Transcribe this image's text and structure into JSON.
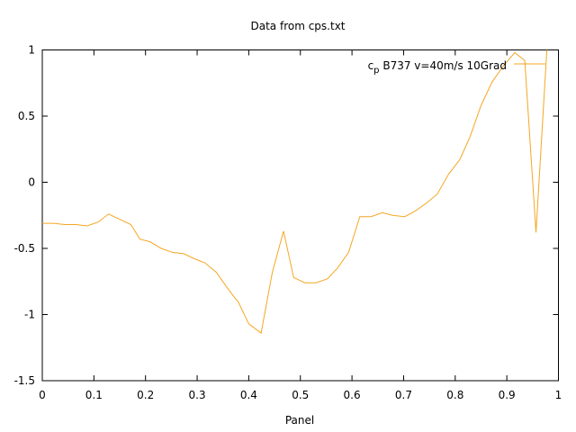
{
  "chart_data": {
    "type": "line",
    "title": "Data from cps.txt",
    "xlabel": "Panel",
    "ylabel": "",
    "xlim": [
      0,
      1
    ],
    "ylim": [
      -1.5,
      1
    ],
    "xticks": [
      0,
      0.1,
      0.2,
      0.3,
      0.4,
      0.5,
      0.6,
      0.7,
      0.8,
      0.9,
      1
    ],
    "xtick_labels": [
      "0",
      "0.1",
      "0.2",
      "0.3",
      "0.4",
      "0.5",
      "0.6",
      "0.7",
      "0.8",
      "0.9",
      "1"
    ],
    "yticks": [
      1,
      0.5,
      0,
      -0.5,
      -1,
      -1.5
    ],
    "ytick_labels": [
      "1",
      "0.5",
      "0",
      "-0.5",
      "-1",
      "-1.5"
    ],
    "grid": false,
    "legend_position": "top-right",
    "series": [
      {
        "name_main": "c",
        "name_sub": "p",
        "name_rest": " B737 v=40m/s 10Grad",
        "color": "#f5a623",
        "x": [
          0,
          0.0217,
          0.0435,
          0.0652,
          0.087,
          0.1087,
          0.1283,
          0.15,
          0.1717,
          0.1891,
          0.2087,
          0.2304,
          0.2522,
          0.2739,
          0.2957,
          0.3152,
          0.337,
          0.3587,
          0.3804,
          0.4,
          0.4239,
          0.4457,
          0.4674,
          0.487,
          0.5087,
          0.5304,
          0.5522,
          0.5717,
          0.5935,
          0.6152,
          0.637,
          0.6587,
          0.6783,
          0.7022,
          0.7217,
          0.7435,
          0.7652,
          0.787,
          0.8087,
          0.8283,
          0.85,
          0.8717,
          0.8935,
          0.9152,
          0.9348,
          0.9565,
          0.9783
        ],
        "y": [
          -0.31,
          -0.31,
          -0.32,
          -0.32,
          -0.33,
          -0.3,
          -0.24,
          -0.28,
          -0.32,
          -0.43,
          -0.45,
          -0.5,
          -0.53,
          -0.54,
          -0.58,
          -0.61,
          -0.68,
          -0.8,
          -0.91,
          -1.07,
          -1.14,
          -0.68,
          -0.37,
          -0.72,
          -0.76,
          -0.76,
          -0.73,
          -0.65,
          -0.53,
          -0.26,
          -0.26,
          -0.23,
          -0.25,
          -0.26,
          -0.22,
          -0.16,
          -0.09,
          0.06,
          0.17,
          0.34,
          0.58,
          0.76,
          0.88,
          0.98,
          0.92,
          -0.38,
          1.05
        ]
      }
    ]
  }
}
